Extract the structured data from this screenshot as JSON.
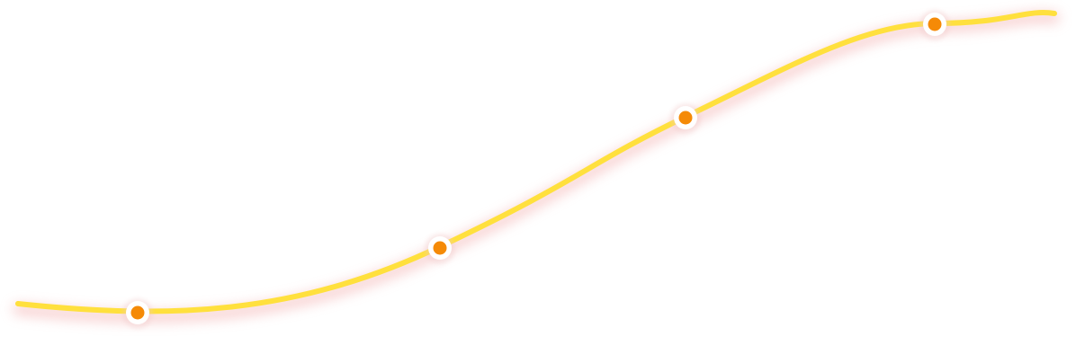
{
  "curve": {
    "line_color": "#FFE03D",
    "glow_color": "#F2A7A7",
    "marker_fill": "#F58A07",
    "marker_ring": "#FFFFFF",
    "marker_count": 4
  }
}
